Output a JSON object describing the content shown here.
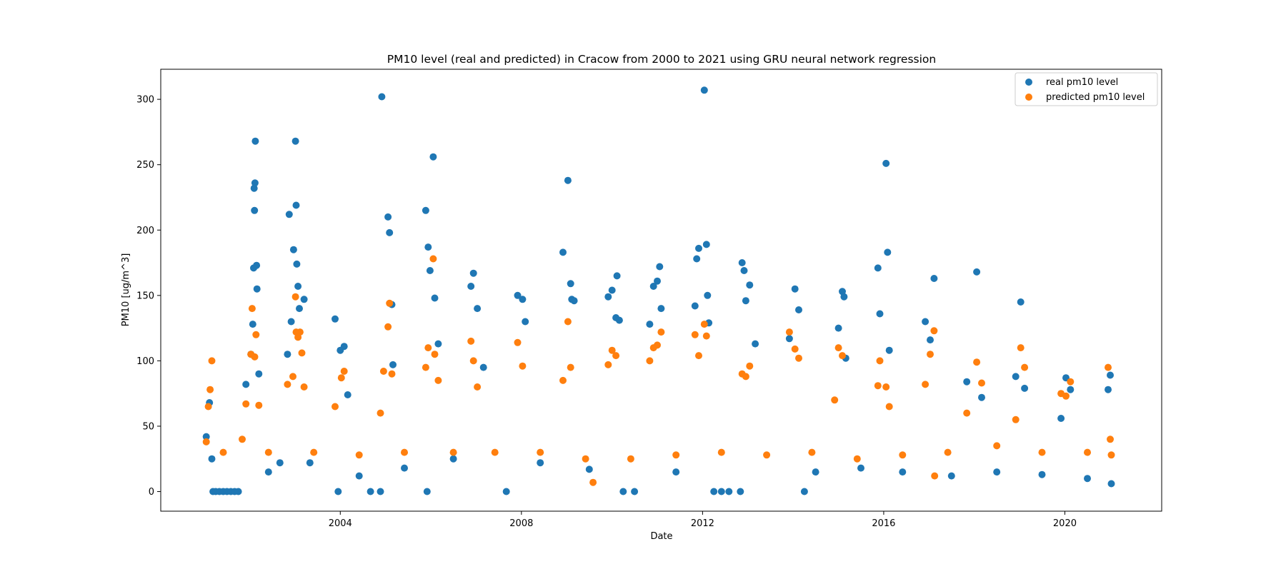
{
  "chart_data": {
    "type": "scatter",
    "title": "PM10 level (real and predicted) in Cracow from 2000 to 2021 using GRU neural network regression",
    "xlabel": "Date",
    "ylabel": "PM10 [ug/m^3]",
    "x_type": "date",
    "xlim": [
      "2000-01-14",
      "2022-02-20"
    ],
    "ylim": [
      -15,
      323
    ],
    "x_ticks": [
      {
        "value": "2004-01-01",
        "label": "2004"
      },
      {
        "value": "2008-01-01",
        "label": "2008"
      },
      {
        "value": "2012-01-01",
        "label": "2012"
      },
      {
        "value": "2016-01-01",
        "label": "2016"
      },
      {
        "value": "2020-01-01",
        "label": "2020"
      }
    ],
    "y_ticks": [
      0,
      50,
      100,
      150,
      200,
      250,
      300
    ],
    "grid": false,
    "legend_position": "top-right",
    "series": [
      {
        "name": "real pm10 level",
        "color": "#1f77b4",
        "points": [
          [
            "2001-01-15",
            42
          ],
          [
            "2001-02-10",
            68
          ],
          [
            "2001-03-01",
            25
          ],
          [
            "2001-03-10",
            0
          ],
          [
            "2001-04-01",
            0
          ],
          [
            "2001-05-01",
            0
          ],
          [
            "2001-06-01",
            0
          ],
          [
            "2001-07-01",
            0
          ],
          [
            "2001-08-01",
            0
          ],
          [
            "2001-09-01",
            0
          ],
          [
            "2001-10-01",
            0
          ],
          [
            "2001-12-01",
            82
          ],
          [
            "2002-01-10",
            105
          ],
          [
            "2002-01-25",
            128
          ],
          [
            "2002-02-01",
            171
          ],
          [
            "2002-02-05",
            232
          ],
          [
            "2002-02-08",
            215
          ],
          [
            "2002-02-12",
            236
          ],
          [
            "2002-02-15",
            268
          ],
          [
            "2002-02-25",
            173
          ],
          [
            "2002-02-28",
            155
          ],
          [
            "2002-03-15",
            90
          ],
          [
            "2002-06-01",
            15
          ],
          [
            "2002-09-01",
            22
          ],
          [
            "2002-11-01",
            105
          ],
          [
            "2002-11-15",
            212
          ],
          [
            "2002-12-01",
            130
          ],
          [
            "2002-12-20",
            185
          ],
          [
            "2003-01-05",
            268
          ],
          [
            "2003-01-10",
            219
          ],
          [
            "2003-01-15",
            174
          ],
          [
            "2003-01-25",
            157
          ],
          [
            "2003-02-05",
            140
          ],
          [
            "2003-03-15",
            147
          ],
          [
            "2003-05-01",
            22
          ],
          [
            "2003-12-15",
            0
          ],
          [
            "2003-11-20",
            132
          ],
          [
            "2004-01-01",
            108
          ],
          [
            "2004-02-01",
            111
          ],
          [
            "2004-03-01",
            74
          ],
          [
            "2004-06-01",
            12
          ],
          [
            "2004-09-01",
            0
          ],
          [
            "2004-11-20",
            0
          ],
          [
            "2004-12-01",
            302
          ],
          [
            "2005-01-20",
            210
          ],
          [
            "2005-02-01",
            198
          ],
          [
            "2005-02-20",
            143
          ],
          [
            "2005-03-01",
            97
          ],
          [
            "2005-06-01",
            18
          ],
          [
            "2005-12-01",
            0
          ],
          [
            "2005-11-20",
            215
          ],
          [
            "2005-12-10",
            187
          ],
          [
            "2005-12-25",
            169
          ],
          [
            "2006-01-20",
            256
          ],
          [
            "2006-02-01",
            148
          ],
          [
            "2006-03-01",
            113
          ],
          [
            "2006-07-01",
            25
          ],
          [
            "2006-11-20",
            157
          ],
          [
            "2006-12-10",
            167
          ],
          [
            "2007-01-10",
            140
          ],
          [
            "2007-03-01",
            95
          ],
          [
            "2007-09-01",
            0
          ],
          [
            "2007-12-01",
            150
          ],
          [
            "2008-01-10",
            147
          ],
          [
            "2008-02-01",
            130
          ],
          [
            "2008-06-01",
            22
          ],
          [
            "2008-12-01",
            183
          ],
          [
            "2009-01-10",
            238
          ],
          [
            "2009-02-01",
            159
          ],
          [
            "2009-02-10",
            147
          ],
          [
            "2009-03-01",
            146
          ],
          [
            "2009-07-01",
            17
          ],
          [
            "2009-12-01",
            149
          ],
          [
            "2010-01-01",
            154
          ],
          [
            "2010-02-01",
            133
          ],
          [
            "2010-02-10",
            165
          ],
          [
            "2010-03-01",
            131
          ],
          [
            "2010-04-01",
            0
          ],
          [
            "2010-07-01",
            0
          ],
          [
            "2010-11-01",
            128
          ],
          [
            "2010-12-01",
            157
          ],
          [
            "2011-01-01",
            161
          ],
          [
            "2011-01-20",
            172
          ],
          [
            "2011-02-01",
            140
          ],
          [
            "2011-06-01",
            15
          ],
          [
            "2011-11-01",
            142
          ],
          [
            "2011-11-15",
            178
          ],
          [
            "2011-12-01",
            186
          ],
          [
            "2012-01-15",
            307
          ],
          [
            "2012-02-01",
            189
          ],
          [
            "2012-02-10",
            150
          ],
          [
            "2012-02-20",
            129
          ],
          [
            "2012-04-01",
            0
          ],
          [
            "2012-06-01",
            0
          ],
          [
            "2012-08-01",
            0
          ],
          [
            "2012-11-15",
            175
          ],
          [
            "2012-12-01",
            169
          ],
          [
            "2012-12-15",
            146
          ],
          [
            "2013-01-15",
            158
          ],
          [
            "2013-03-01",
            113
          ],
          [
            "2012-11-01",
            0
          ],
          [
            "2013-12-01",
            117
          ],
          [
            "2014-01-15",
            155
          ],
          [
            "2014-02-15",
            139
          ],
          [
            "2014-04-01",
            0
          ],
          [
            "2014-07-01",
            15
          ],
          [
            "2015-01-01",
            125
          ],
          [
            "2015-02-01",
            153
          ],
          [
            "2015-02-15",
            149
          ],
          [
            "2015-03-01",
            102
          ],
          [
            "2015-07-01",
            18
          ],
          [
            "2015-11-15",
            171
          ],
          [
            "2015-12-01",
            136
          ],
          [
            "2016-01-20",
            251
          ],
          [
            "2016-02-01",
            183
          ],
          [
            "2016-02-15",
            108
          ],
          [
            "2016-06-01",
            15
          ],
          [
            "2016-12-01",
            130
          ],
          [
            "2017-01-10",
            116
          ],
          [
            "2017-02-10",
            163
          ],
          [
            "2017-07-01",
            12
          ],
          [
            "2017-11-01",
            84
          ],
          [
            "2018-01-20",
            168
          ],
          [
            "2018-03-01",
            72
          ],
          [
            "2018-07-01",
            15
          ],
          [
            "2018-12-01",
            88
          ],
          [
            "2019-01-10",
            145
          ],
          [
            "2019-02-10",
            79
          ],
          [
            "2019-07-01",
            13
          ],
          [
            "2019-12-01",
            56
          ],
          [
            "2020-01-10",
            87
          ],
          [
            "2020-02-15",
            78
          ],
          [
            "2020-07-01",
            10
          ],
          [
            "2020-12-15",
            78
          ],
          [
            "2021-01-01",
            89
          ],
          [
            "2021-01-10",
            6
          ]
        ]
      },
      {
        "name": "predicted pm10 level",
        "color": "#ff7f0e",
        "points": [
          [
            "2001-01-15",
            38
          ],
          [
            "2001-02-01",
            65
          ],
          [
            "2001-02-15",
            78
          ],
          [
            "2001-03-01",
            100
          ],
          [
            "2001-06-01",
            30
          ],
          [
            "2001-11-01",
            40
          ],
          [
            "2001-12-01",
            67
          ],
          [
            "2002-01-10",
            105
          ],
          [
            "2002-01-20",
            140
          ],
          [
            "2002-02-10",
            103
          ],
          [
            "2002-02-20",
            120
          ],
          [
            "2002-03-15",
            66
          ],
          [
            "2002-06-01",
            30
          ],
          [
            "2002-11-01",
            82
          ],
          [
            "2002-12-15",
            88
          ],
          [
            "2003-01-05",
            149
          ],
          [
            "2003-01-10",
            122
          ],
          [
            "2003-01-25",
            118
          ],
          [
            "2003-02-10",
            122
          ],
          [
            "2003-02-25",
            106
          ],
          [
            "2003-03-15",
            80
          ],
          [
            "2003-06-01",
            30
          ],
          [
            "2003-11-20",
            65
          ],
          [
            "2004-01-10",
            87
          ],
          [
            "2004-02-01",
            92
          ],
          [
            "2004-06-01",
            28
          ],
          [
            "2004-11-20",
            60
          ],
          [
            "2004-12-15",
            92
          ],
          [
            "2005-01-20",
            126
          ],
          [
            "2005-02-01",
            144
          ],
          [
            "2005-02-20",
            90
          ],
          [
            "2005-06-01",
            30
          ],
          [
            "2005-11-20",
            95
          ],
          [
            "2005-12-10",
            110
          ],
          [
            "2006-01-20",
            178
          ],
          [
            "2006-02-01",
            105
          ],
          [
            "2006-03-01",
            85
          ],
          [
            "2006-07-01",
            30
          ],
          [
            "2006-11-20",
            115
          ],
          [
            "2006-12-10",
            100
          ],
          [
            "2007-01-10",
            80
          ],
          [
            "2007-06-01",
            30
          ],
          [
            "2007-12-01",
            114
          ],
          [
            "2008-01-10",
            96
          ],
          [
            "2008-06-01",
            30
          ],
          [
            "2008-12-01",
            85
          ],
          [
            "2009-01-10",
            130
          ],
          [
            "2009-02-01",
            95
          ],
          [
            "2009-06-01",
            25
          ],
          [
            "2009-08-01",
            7
          ],
          [
            "2009-12-01",
            97
          ],
          [
            "2010-01-01",
            108
          ],
          [
            "2010-02-01",
            104
          ],
          [
            "2010-06-01",
            25
          ],
          [
            "2010-11-01",
            100
          ],
          [
            "2010-12-01",
            110
          ],
          [
            "2011-01-01",
            112
          ],
          [
            "2011-02-01",
            122
          ],
          [
            "2011-06-01",
            28
          ],
          [
            "2011-11-01",
            120
          ],
          [
            "2011-12-01",
            104
          ],
          [
            "2012-01-15",
            128
          ],
          [
            "2012-02-01",
            119
          ],
          [
            "2012-06-01",
            30
          ],
          [
            "2012-11-15",
            90
          ],
          [
            "2012-12-15",
            88
          ],
          [
            "2013-01-15",
            96
          ],
          [
            "2013-06-01",
            28
          ],
          [
            "2013-12-01",
            122
          ],
          [
            "2014-01-15",
            109
          ],
          [
            "2014-02-15",
            102
          ],
          [
            "2014-06-01",
            30
          ],
          [
            "2014-12-01",
            70
          ],
          [
            "2015-01-01",
            110
          ],
          [
            "2015-02-01",
            104
          ],
          [
            "2015-06-01",
            25
          ],
          [
            "2015-11-15",
            81
          ],
          [
            "2015-12-01",
            100
          ],
          [
            "2016-01-20",
            80
          ],
          [
            "2016-02-15",
            65
          ],
          [
            "2016-06-01",
            28
          ],
          [
            "2016-12-01",
            82
          ],
          [
            "2017-01-10",
            105
          ],
          [
            "2017-02-10",
            123
          ],
          [
            "2017-02-15",
            12
          ],
          [
            "2017-06-01",
            30
          ],
          [
            "2017-11-01",
            60
          ],
          [
            "2018-01-20",
            99
          ],
          [
            "2018-03-01",
            83
          ],
          [
            "2018-07-01",
            35
          ],
          [
            "2018-12-01",
            55
          ],
          [
            "2019-01-10",
            110
          ],
          [
            "2019-02-10",
            95
          ],
          [
            "2019-07-01",
            30
          ],
          [
            "2019-12-01",
            75
          ],
          [
            "2020-01-10",
            73
          ],
          [
            "2020-02-15",
            84
          ],
          [
            "2020-07-01",
            30
          ],
          [
            "2020-12-15",
            95
          ],
          [
            "2021-01-01",
            40
          ],
          [
            "2021-01-10",
            28
          ]
        ]
      }
    ]
  }
}
